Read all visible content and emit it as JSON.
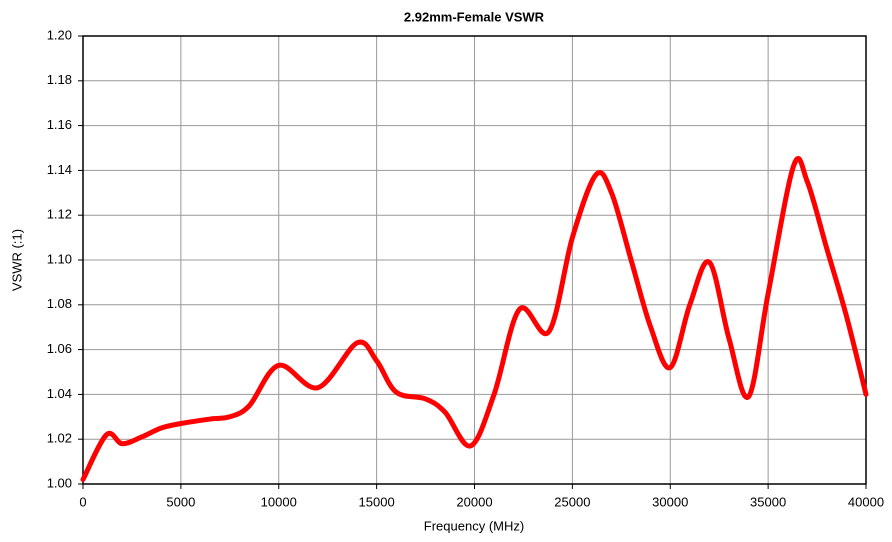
{
  "chart_data": {
    "type": "line",
    "title": "2.92mm-Female VSWR",
    "xlabel": "Frequency (MHz)",
    "ylabel": "VSWR (:1)",
    "x": [
      0,
      1200,
      2000,
      3000,
      4000,
      5000,
      6500,
      7500,
      8500,
      10000,
      12000,
      14000,
      15000,
      16000,
      17500,
      18500,
      19800,
      21000,
      22300,
      23800,
      25000,
      26200,
      27000,
      28000,
      29000,
      30000,
      31000,
      32000,
      33000,
      34000,
      35000,
      36300,
      37000,
      38000,
      39000,
      40000
    ],
    "series": [
      {
        "name": "VSWR",
        "color": "#ff0000",
        "values": [
          1.002,
          1.022,
          1.018,
          1.021,
          1.025,
          1.027,
          1.029,
          1.03,
          1.035,
          1.053,
          1.043,
          1.063,
          1.055,
          1.041,
          1.038,
          1.032,
          1.017,
          1.04,
          1.078,
          1.068,
          1.11,
          1.138,
          1.13,
          1.1,
          1.07,
          1.052,
          1.08,
          1.099,
          1.065,
          1.039,
          1.085,
          1.142,
          1.135,
          1.105,
          1.075,
          1.04
        ]
      }
    ],
    "xlim": [
      0,
      40000
    ],
    "xticks": [
      0,
      5000,
      10000,
      15000,
      20000,
      25000,
      30000,
      35000,
      40000
    ],
    "ylim": [
      1.0,
      1.2
    ],
    "yticks": [
      {
        "value": 1.0,
        "label": "1.00"
      },
      {
        "value": 1.02,
        "label": "1.02"
      },
      {
        "value": 1.04,
        "label": "1.04"
      },
      {
        "value": 1.06,
        "label": "1.06"
      },
      {
        "value": 1.08,
        "label": "1.08"
      },
      {
        "value": 1.1,
        "label": "1.10"
      },
      {
        "value": 1.12,
        "label": "1.12"
      },
      {
        "value": 1.14,
        "label": "1.14"
      },
      {
        "value": 1.16,
        "label": "1.16"
      },
      {
        "value": 1.18,
        "label": "1.18"
      },
      {
        "value": 1.2,
        "label": "1.20"
      }
    ],
    "grid": true
  }
}
